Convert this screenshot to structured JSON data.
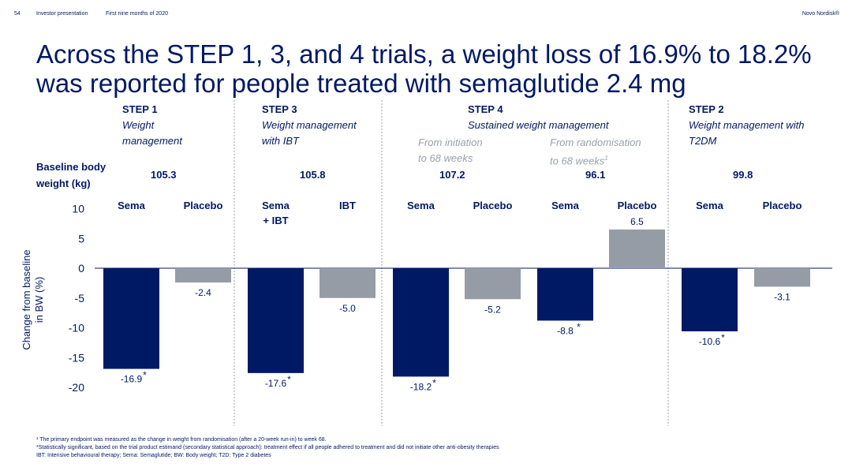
{
  "header": {
    "page_number": "54",
    "section": "Investor presentation",
    "period": "First nine months of 2020",
    "brand": "Novo Nordisk®"
  },
  "title": {
    "line1": "Across the STEP 1, 3, and 4 trials, a weight loss of 16.9% to 18.2%",
    "line2": "was reported for people treated with semaglutide 2.4 mg"
  },
  "trials": {
    "step1": {
      "name": "STEP 1",
      "sub1": "Weight",
      "sub2": "management",
      "baseline": "105.3"
    },
    "step3": {
      "name": "STEP 3",
      "sub1": "Weight management",
      "sub2": "with IBT",
      "baseline": "105.8"
    },
    "step4": {
      "name": "STEP 4",
      "sub": "Sustained weight management",
      "left_sub1": "From initiation",
      "left_sub2": "to 68 weeks",
      "left_baseline": "107.2",
      "right_sub1": "From randomisation",
      "right_sub2": "to 68 weeks",
      "right_sup": "1",
      "right_baseline": "96.1"
    },
    "step2": {
      "name": "STEP 2",
      "sub1": "Weight management with",
      "sub2": "T2DM",
      "baseline": "99.8"
    }
  },
  "baseline_label": {
    "line1": "Baseline body",
    "line2": "weight (kg)"
  },
  "y_axis_label": {
    "line1": "Change from baseline",
    "line2": "in BW (%)"
  },
  "colors": {
    "navy": "#001965",
    "gray": "#969ca6",
    "divider": "#9aa0ab"
  },
  "chart_data": {
    "type": "bar",
    "ylim": [
      -20,
      10
    ],
    "yticks": [
      10,
      5,
      0,
      -5,
      -10,
      -15,
      -20
    ],
    "ylabel": "Change from baseline in BW (%)",
    "bars": [
      {
        "group": "STEP 1",
        "category": "Sema",
        "value": -16.9,
        "label": "-16.9",
        "star": "*",
        "color": "#001965"
      },
      {
        "group": "STEP 1",
        "category": "Placebo",
        "value": -2.4,
        "label": "-2.4",
        "star": "",
        "color": "#969ca6"
      },
      {
        "group": "STEP 3",
        "category": "Sema\n+ IBT",
        "value": -17.6,
        "label": "-17.6",
        "star": "*",
        "color": "#001965"
      },
      {
        "group": "STEP 3",
        "category": "IBT",
        "value": -5.0,
        "label": "-5.0",
        "star": "",
        "color": "#969ca6"
      },
      {
        "group": "STEP 4",
        "category": "Sema",
        "value": -18.2,
        "label": "-18.2",
        "star": "*",
        "color": "#001965"
      },
      {
        "group": "STEP 4",
        "category": "Placebo",
        "value": -5.2,
        "label": "-5.2",
        "star": "",
        "color": "#969ca6"
      },
      {
        "group": "STEP 4",
        "category": "Sema",
        "value": -8.8,
        "label": "-8.8",
        "star": "*",
        "color": "#001965"
      },
      {
        "group": "STEP 4",
        "category": "Placebo",
        "value": 6.5,
        "label": "6.5",
        "star": "",
        "color": "#969ca6"
      },
      {
        "group": "STEP 2",
        "category": "Sema",
        "value": -10.6,
        "label": "-10.6",
        "star": "*",
        "color": "#001965"
      },
      {
        "group": "STEP 2",
        "category": "Placebo",
        "value": -3.1,
        "label": "-3.1",
        "star": "",
        "color": "#969ca6"
      }
    ]
  },
  "footnotes": {
    "f1": "¹ The primary endpoint was measured as the change in weight from randomisation (after a 20-week run-in) to week 68.",
    "f2": "*Statistically significant, based on the trial product estimand (secondary statistical approach): treatment effect if all people adhered to treatment and did not initiate other anti-obesity therapies",
    "f3": "IBT: Intensive behavioural therapy; Sema: Semaglutide; BW: Body weight; T2D: Type 2 diabetes"
  }
}
